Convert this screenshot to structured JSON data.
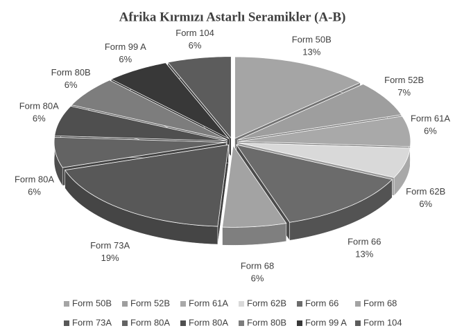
{
  "chart_data": {
    "type": "pie",
    "title": "Afrika Kırmızı Astarlı Seramikler (A-B)",
    "categories": [
      "Form 50B",
      "Form 52B",
      "Form 61A",
      "Form 62B",
      "Form 66",
      "Form 68",
      "Form 73A",
      "Form 80A",
      "Form 80A",
      "Form 80B",
      "Form 99 A",
      "Form 104"
    ],
    "values": [
      13,
      7,
      6,
      6,
      13,
      6,
      19,
      6,
      6,
      6,
      6,
      6
    ],
    "value_labels": [
      "13%",
      "7%",
      "6%",
      "6%",
      "13%",
      "6%",
      "19%",
      "6%",
      "6%",
      "6%",
      "6%",
      "6%"
    ],
    "colors": [
      "#a5a5a5",
      "#9e9e9e",
      "#a9a9a9",
      "#d9d9d9",
      "#6b6b6b",
      "#a3a3a3",
      "#585858",
      "#636363",
      "#4f4f4f",
      "#7d7d7d",
      "#383838",
      "#5c5c5c"
    ],
    "legend": "bottom"
  }
}
